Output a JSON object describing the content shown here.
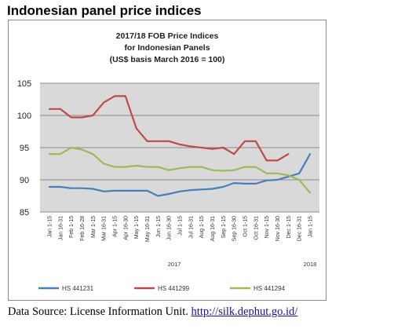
{
  "page": {
    "heading": "Indonesian panel price indices",
    "source_prefix": "Data Source: License Information Unit. ",
    "source_link": "http://silk.dephut.go.id/"
  },
  "chart_data": {
    "type": "line",
    "title_lines": [
      "2017/18 FOB Price Indices",
      "for Indonesian Panels",
      "(US$ basis March 2016 = 100)"
    ],
    "categories": [
      "Jan 1-15",
      "Jan 16-31",
      "Feb 1-15",
      "Feb 16-28",
      "Mar 1-15",
      "Mar 16-31",
      "Apr 1-15",
      "Apr 16-30",
      "May 1-15",
      "May 16-31",
      "Jun 1-15",
      "Jun 16-30",
      "Jul 1-15",
      "Jul 16-31",
      "Aug 1-15",
      "Aug 16-31",
      "Sep 1-15",
      "Sep 16-30",
      "Oct 1-15",
      "Oct 16-31",
      "Nov 1-15",
      "Nov 16-30",
      "Dec 1-15",
      "Dec 16-31",
      "Jan 1-15"
    ],
    "year_labels": [
      {
        "label": "2017",
        "index": 11.5
      },
      {
        "label": "2018",
        "index": 24
      }
    ],
    "ylim": [
      85,
      105
    ],
    "yticks": [
      85,
      90,
      95,
      100,
      105
    ],
    "grid": true,
    "legend_position": "bottom",
    "series": [
      {
        "name": "HS 441231",
        "color": "#4a7ebb",
        "values": [
          88.9,
          88.9,
          88.7,
          88.7,
          88.6,
          88.2,
          88.3,
          88.3,
          88.3,
          88.3,
          87.5,
          87.8,
          88.2,
          88.4,
          88.5,
          88.6,
          88.9,
          89.5,
          89.4,
          89.4,
          89.9,
          90.0,
          90.5,
          91.0,
          94.0
        ]
      },
      {
        "name": "HS 441299",
        "color": "#be4b48",
        "values": [
          101.0,
          101.0,
          99.7,
          99.7,
          100.0,
          102.0,
          103.0,
          103.0,
          98.0,
          96.0,
          96.0,
          96.0,
          95.5,
          95.2,
          95.0,
          94.8,
          95.0,
          94.0,
          96.0,
          96.0,
          93.0,
          93.0,
          94.0,
          null,
          null
        ]
      },
      {
        "name": "HS 441294",
        "color": "#9bbb59",
        "values": [
          94.0,
          94.0,
          95.0,
          94.7,
          94.0,
          92.5,
          92.0,
          92.0,
          92.2,
          92.0,
          92.0,
          91.5,
          91.8,
          92.0,
          92.0,
          91.5,
          91.4,
          91.5,
          92.0,
          92.0,
          91.0,
          91.0,
          90.7,
          90.0,
          88.0
        ]
      }
    ]
  }
}
